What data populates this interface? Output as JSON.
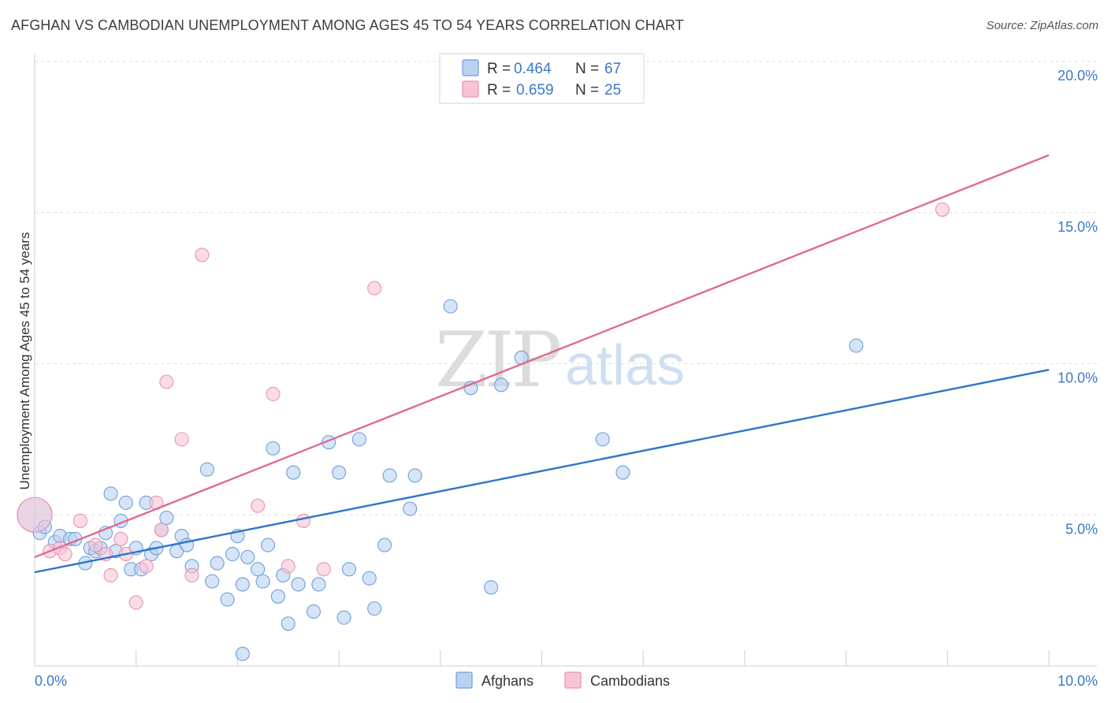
{
  "title": "AFGHAN VS CAMBODIAN UNEMPLOYMENT AMONG AGES 45 TO 54 YEARS CORRELATION CHART",
  "source": "Source: ZipAtlas.com",
  "watermark": {
    "zip": "ZIP",
    "atlas": "atlas"
  },
  "chart_data": {
    "type": "scatter",
    "title": "AFGHAN VS CAMBODIAN UNEMPLOYMENT AMONG AGES 45 TO 54 YEARS CORRELATION CHART",
    "xlabel": "",
    "ylabel": "Unemployment Among Ages 45 to 54 years",
    "xlim": [
      0,
      10
    ],
    "ylim": [
      0,
      20
    ],
    "x_tick_labels": {
      "left": "0.0%",
      "right": "10.0%"
    },
    "y_ticks": [
      {
        "value": 5,
        "label": "5.0%"
      },
      {
        "value": 10,
        "label": "10.0%"
      },
      {
        "value": 15,
        "label": "15.0%"
      },
      {
        "value": 20,
        "label": "20.0%"
      }
    ],
    "legend": [
      {
        "series": "Afghans",
        "r_label": "R = ",
        "r": "0.464",
        "n_label": "N = ",
        "n": "67"
      },
      {
        "series": "Cambodians",
        "r_label": "R = ",
        "r": "0.659",
        "n_label": "N = ",
        "n": "25"
      }
    ],
    "series": [
      {
        "name": "Afghans",
        "color": "#6f9fdc",
        "fill": "#b9d2f1",
        "line_color": "#2e74c9",
        "trendline": {
          "x": [
            0,
            10
          ],
          "y": [
            3.1,
            9.8
          ]
        },
        "points": [
          [
            0.0,
            5.0
          ],
          [
            0.05,
            4.4
          ],
          [
            0.1,
            4.6
          ],
          [
            0.2,
            4.1
          ],
          [
            0.25,
            4.3
          ],
          [
            0.35,
            4.2
          ],
          [
            0.4,
            4.2
          ],
          [
            0.5,
            3.4
          ],
          [
            0.55,
            3.9
          ],
          [
            0.6,
            3.8
          ],
          [
            0.65,
            3.9
          ],
          [
            0.7,
            4.4
          ],
          [
            0.75,
            5.7
          ],
          [
            0.8,
            3.8
          ],
          [
            0.85,
            4.8
          ],
          [
            0.9,
            5.4
          ],
          [
            0.95,
            3.2
          ],
          [
            1.0,
            3.9
          ],
          [
            1.05,
            3.2
          ],
          [
            1.1,
            5.4
          ],
          [
            1.15,
            3.7
          ],
          [
            1.2,
            3.9
          ],
          [
            1.3,
            4.9
          ],
          [
            1.25,
            4.5
          ],
          [
            1.4,
            3.8
          ],
          [
            1.45,
            4.3
          ],
          [
            1.5,
            4.0
          ],
          [
            1.55,
            3.3
          ],
          [
            1.7,
            6.5
          ],
          [
            1.75,
            2.8
          ],
          [
            1.8,
            3.4
          ],
          [
            1.9,
            2.2
          ],
          [
            1.95,
            3.7
          ],
          [
            2.0,
            4.3
          ],
          [
            2.05,
            2.7
          ],
          [
            2.1,
            3.6
          ],
          [
            2.2,
            3.2
          ],
          [
            2.25,
            2.8
          ],
          [
            2.3,
            4.0
          ],
          [
            2.35,
            7.2
          ],
          [
            2.4,
            2.3
          ],
          [
            2.45,
            3.0
          ],
          [
            2.5,
            1.4
          ],
          [
            2.55,
            6.4
          ],
          [
            2.6,
            2.7
          ],
          [
            2.75,
            1.8
          ],
          [
            2.8,
            2.7
          ],
          [
            2.9,
            7.4
          ],
          [
            3.0,
            6.4
          ],
          [
            3.05,
            1.6
          ],
          [
            3.2,
            7.5
          ],
          [
            3.3,
            2.9
          ],
          [
            3.35,
            1.9
          ],
          [
            3.45,
            4.0
          ],
          [
            3.5,
            6.3
          ],
          [
            3.7,
            5.2
          ],
          [
            3.75,
            6.3
          ],
          [
            4.1,
            11.9
          ],
          [
            4.3,
            9.2
          ],
          [
            4.5,
            2.6
          ],
          [
            4.6,
            9.3
          ],
          [
            4.8,
            10.2
          ],
          [
            5.6,
            7.5
          ],
          [
            5.8,
            6.4
          ],
          [
            8.1,
            10.6
          ],
          [
            3.1,
            3.2
          ],
          [
            2.05,
            0.4
          ]
        ]
      },
      {
        "name": "Cambodians",
        "color": "#e993b0",
        "fill": "#f6c4d5",
        "line_color": "#e06a93",
        "trendline": {
          "x": [
            0,
            10
          ],
          "y": [
            3.6,
            16.9
          ]
        },
        "points": [
          [
            0.0,
            5.0
          ],
          [
            0.15,
            3.8
          ],
          [
            0.25,
            3.9
          ],
          [
            0.3,
            3.7
          ],
          [
            0.45,
            4.8
          ],
          [
            0.6,
            4.0
          ],
          [
            0.7,
            3.7
          ],
          [
            0.75,
            3.0
          ],
          [
            0.85,
            4.2
          ],
          [
            0.9,
            3.7
          ],
          [
            1.0,
            2.1
          ],
          [
            1.1,
            3.3
          ],
          [
            1.2,
            5.4
          ],
          [
            1.25,
            4.5
          ],
          [
            1.3,
            9.4
          ],
          [
            1.45,
            7.5
          ],
          [
            1.55,
            3.0
          ],
          [
            1.65,
            13.6
          ],
          [
            2.2,
            5.3
          ],
          [
            2.35,
            9.0
          ],
          [
            2.5,
            3.3
          ],
          [
            2.65,
            4.8
          ],
          [
            2.85,
            3.2
          ],
          [
            3.35,
            12.5
          ],
          [
            8.95,
            15.1
          ]
        ]
      }
    ]
  }
}
